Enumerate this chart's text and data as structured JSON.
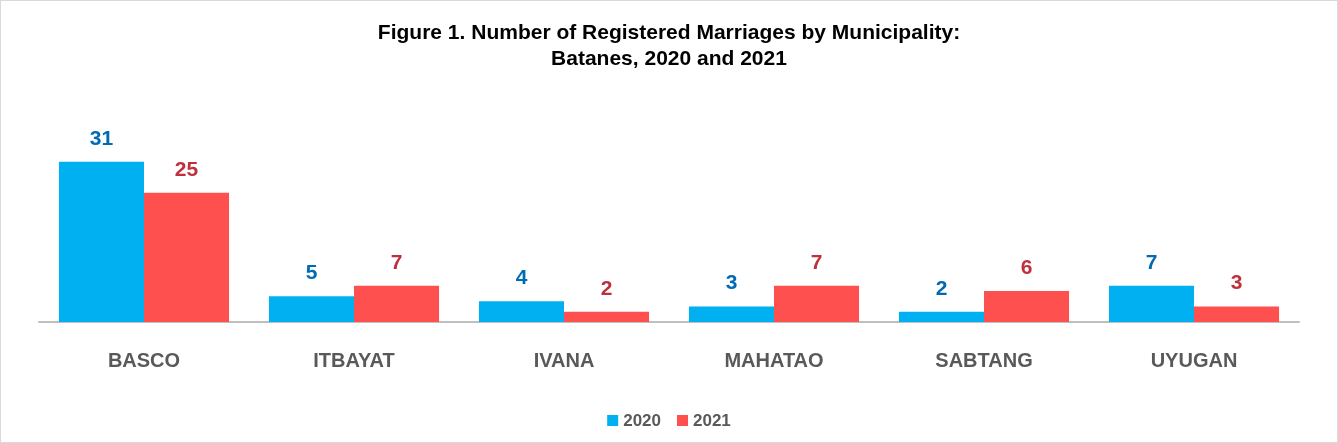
{
  "chart_data": {
    "type": "bar",
    "title": "Figure 1. Number of Registered Marriages by Municipality:\nBatanes, 2020 and 2021",
    "categories": [
      "BASCO",
      "ITBAYAT",
      "IVANA",
      "MAHATAO",
      "SABTANG",
      "UYUGAN"
    ],
    "series": [
      {
        "name": "2020",
        "color": "#00b0f0",
        "values": [
          31,
          5,
          4,
          3,
          2,
          7
        ]
      },
      {
        "name": "2021",
        "color": "#ff5050",
        "values": [
          25,
          7,
          2,
          7,
          6,
          3
        ]
      }
    ],
    "data_labels": true,
    "legend": "bottom"
  }
}
